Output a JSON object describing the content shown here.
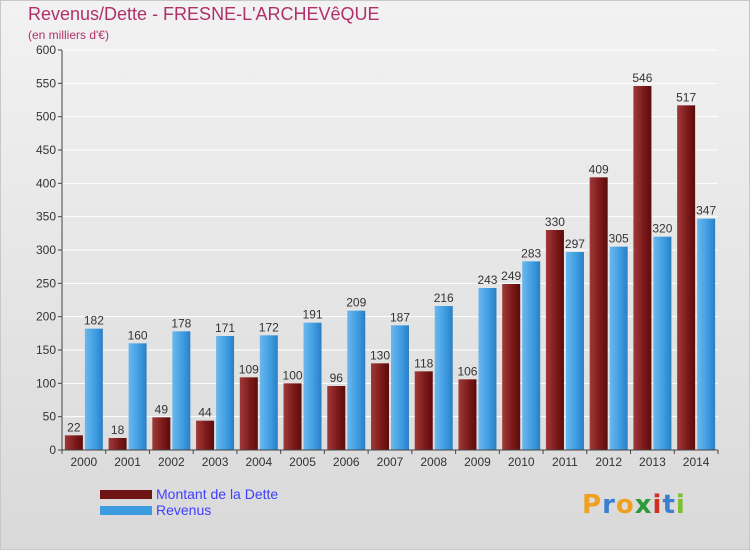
{
  "header": {
    "title": "Revenus/Dette - FRESNE-L'ARCHEVêQUE",
    "subtitle": "(en milliers d'€)"
  },
  "chart_data": {
    "type": "bar",
    "title": "Revenus/Dette - FRESNE-L'ARCHEVêQUE",
    "ylabel": "(en milliers d'€)",
    "ylim": [
      0,
      600
    ],
    "yticks": [
      0,
      50,
      100,
      150,
      200,
      250,
      300,
      350,
      400,
      450,
      500,
      550,
      600
    ],
    "categories": [
      "2000",
      "2001",
      "2002",
      "2003",
      "2004",
      "2005",
      "2006",
      "2007",
      "2008",
      "2009",
      "2010",
      "2011",
      "2012",
      "2013",
      "2014"
    ],
    "series": [
      {
        "name": "Montant de la Dette",
        "color": "#6e1414",
        "values": [
          22,
          18,
          49,
          44,
          109,
          100,
          96,
          130,
          118,
          106,
          249,
          330,
          409,
          546,
          517
        ]
      },
      {
        "name": "Revenus",
        "color": "#3d9be0",
        "values": [
          182,
          160,
          178,
          171,
          172,
          191,
          209,
          187,
          216,
          243,
          283,
          297,
          305,
          320,
          347
        ]
      }
    ],
    "legend_position": "bottom-left"
  },
  "logo": {
    "letters": [
      "P",
      "r",
      "o",
      "x",
      "i",
      "t",
      "i"
    ]
  }
}
